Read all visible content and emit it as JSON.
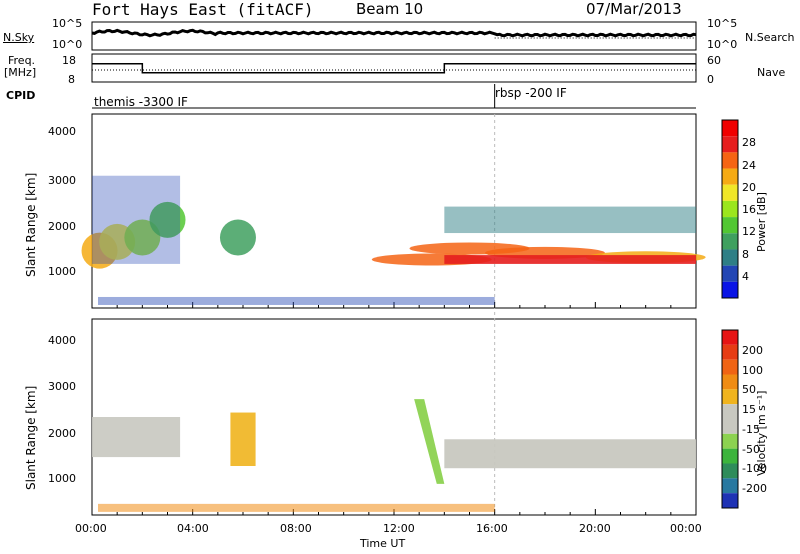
{
  "header": {
    "station": "Fort Hays East (fitACF)",
    "beam": "Beam 10",
    "date": "07/Mar/2013"
  },
  "noise_panel": {
    "left_label": "N.Sky",
    "left_ticks": [
      "10^5",
      "10^0"
    ],
    "right_label": "N.Search",
    "right_ticks": [
      "10^5",
      "10^0"
    ]
  },
  "freq_panel": {
    "left_label_line1": "Freq.",
    "left_label_line2": "[MHz]",
    "left_ticks": [
      "18",
      "8"
    ],
    "right_label": "Nave",
    "right_ticks": [
      "60",
      "0"
    ]
  },
  "cpid_panel": {
    "label": "CPID",
    "programs": [
      {
        "name": "themis -3300 IF"
      },
      {
        "name": "rbsp -200 IF"
      }
    ]
  },
  "power_panel": {
    "ylabel": "Slant Range [km]",
    "yticks": [
      "4000",
      "3000",
      "2000",
      "1000"
    ],
    "colorbar_label": "Power [dB]",
    "colorbar_ticks": [
      "28",
      "24",
      "20",
      "16",
      "12",
      "8",
      "4"
    ],
    "colors": [
      "#0a14e6",
      "#2346b4",
      "#2f7f86",
      "#3fa05f",
      "#52c733",
      "#9be61e",
      "#f0e628",
      "#f5aa14",
      "#f56414",
      "#e61e1e",
      "#f00000"
    ]
  },
  "velocity_panel": {
    "ylabel": "Slant Range [km]",
    "yticks": [
      "4000",
      "3000",
      "2000",
      "1000"
    ],
    "colorbar_label": "Velocity [m s⁻¹]",
    "colorbar_ticks": [
      "200",
      "100",
      "50",
      "15",
      "-15",
      "-50",
      "-100",
      "-200"
    ],
    "colors": [
      "#1e32b4",
      "#2878a0",
      "#2e8c5a",
      "#3cb43c",
      "#8cd250",
      "#c8c8c0",
      "#c8c8c0",
      "#f0b41e",
      "#f08c14",
      "#f06414",
      "#e63c14",
      "#e61414"
    ]
  },
  "xaxis": {
    "label": "Time UT",
    "ticks": [
      "00:00",
      "04:00",
      "08:00",
      "12:00",
      "16:00",
      "20:00",
      "00:00"
    ]
  },
  "chart_data": {
    "type": "heatmap",
    "x_range_hours": [
      0,
      24
    ],
    "y_range_km": [
      200,
      4600
    ],
    "program_change_hour": 16,
    "frequency_mhz": [
      {
        "start": 0,
        "end": 2,
        "value": 14.5
      },
      {
        "start": 2,
        "end": 14,
        "value": 11.3
      },
      {
        "start": 14,
        "end": 24,
        "value": 14.5
      }
    ],
    "echo_regions_power_db": [
      {
        "t": 0.3,
        "r": 1500,
        "power": 22
      },
      {
        "t": 1.0,
        "r": 1700,
        "power": 18
      },
      {
        "t": 2.0,
        "r": 1800,
        "power": 16
      },
      {
        "t": 3.0,
        "r": 2200,
        "power": 12
      },
      {
        "t": 5.8,
        "r": 1800,
        "power": 10
      },
      {
        "t": 13.5,
        "r": 1300,
        "power": 24
      },
      {
        "t": 15.0,
        "r": 1550,
        "power": 26
      },
      {
        "t": 18.0,
        "r": 1450,
        "power": 24
      },
      {
        "t": 22.0,
        "r": 1350,
        "power": 22
      }
    ]
  }
}
